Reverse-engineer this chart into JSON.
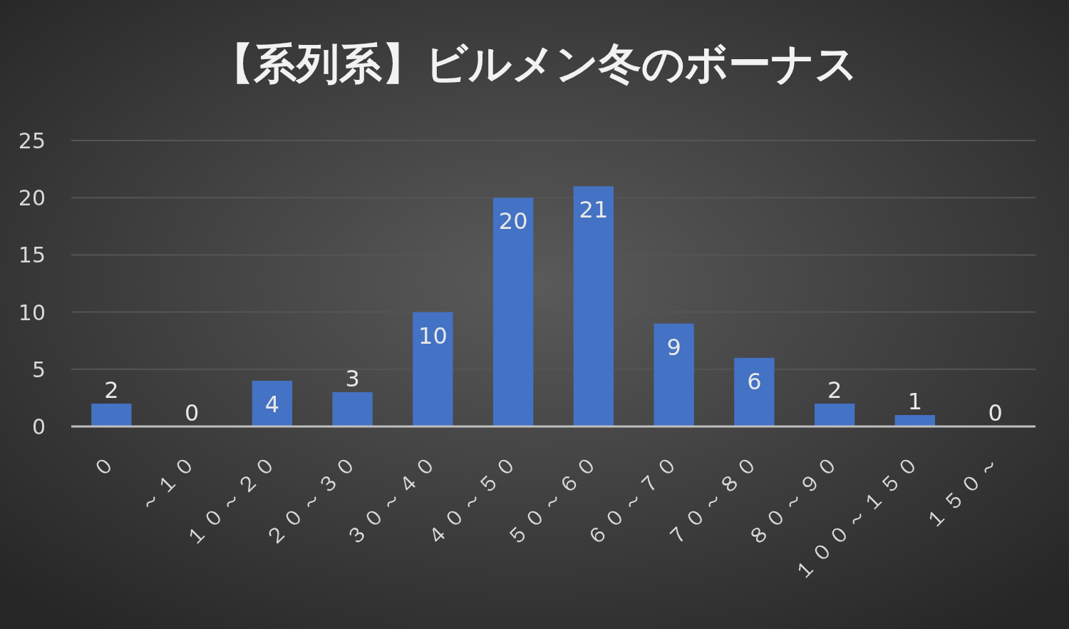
{
  "chart_data": {
    "type": "bar",
    "title": "【系列系】ビルメン冬のボーナス",
    "categories": [
      "０",
      "～１０",
      "１０～２０",
      "２０～３０",
      "３０～４０",
      "４０～５０",
      "５０～６０",
      "６０～７０",
      "７０～８０",
      "８０～９０",
      "１００～１５０",
      "１５０～"
    ],
    "values": [
      2,
      0,
      4,
      3,
      10,
      20,
      21,
      9,
      6,
      2,
      1,
      0
    ],
    "color": "#4472c4",
    "ylim": [
      0,
      25
    ],
    "yticks": [
      0,
      5,
      10,
      15,
      20,
      25
    ],
    "grid": "y",
    "data_labels": true
  }
}
